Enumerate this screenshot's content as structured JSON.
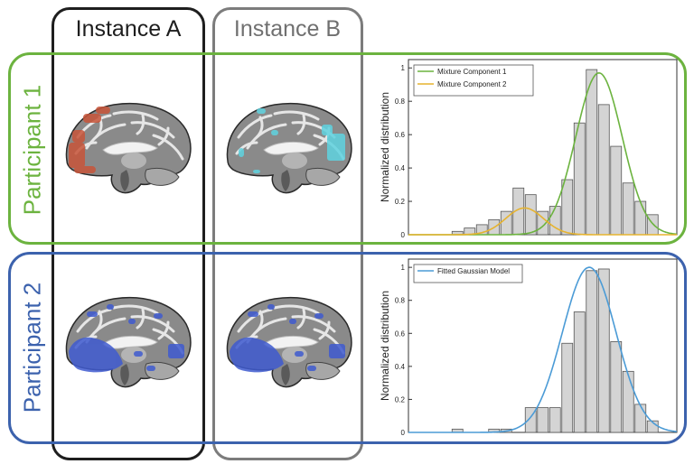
{
  "columns": {
    "a": {
      "title": "Instance A"
    },
    "b": {
      "title": "Instance B"
    }
  },
  "rows": {
    "p1": {
      "label": "Participant 1"
    },
    "p2": {
      "label": "Participant 2"
    }
  },
  "colors": {
    "green": "#6cb33f",
    "blue": "#3c62ad",
    "dark_frame": "#1e1e1e",
    "grey_frame": "#7c7c7c",
    "orange_overlay": "#c8553a",
    "cyan_overlay": "#5fd3e0",
    "blue_overlay": "#3f5bd0"
  },
  "brains": [
    {
      "participant": "Participant 1",
      "instance": "Instance A",
      "overlay": "orange_overlay"
    },
    {
      "participant": "Participant 1",
      "instance": "Instance B",
      "overlay": "cyan_overlay"
    },
    {
      "participant": "Participant 2",
      "instance": "Instance A",
      "overlay": "blue_overlay"
    },
    {
      "participant": "Participant 2",
      "instance": "Instance B",
      "overlay": "blue_overlay"
    }
  ],
  "chart_data": [
    {
      "type": "bar",
      "title": "",
      "xlabel": "",
      "ylabel": "Normalized distribution",
      "ylim": [
        0,
        1.05
      ],
      "yticks": [
        "0",
        "0.2",
        "0.4",
        "0.6",
        "0.8",
        "1"
      ],
      "bar_color": "#d4d4d4",
      "values": [
        0.02,
        0.04,
        0.06,
        0.09,
        0.14,
        0.28,
        0.24,
        0.14,
        0.17,
        0.33,
        0.67,
        0.99,
        0.78,
        0.53,
        0.31,
        0.2,
        0.12
      ],
      "series": [
        {
          "name": "Mixture Component 1",
          "color": "#6cb33f",
          "mu": 12.1,
          "sigma": 1.9,
          "peak": 0.97
        },
        {
          "name": "Mixture Component 2",
          "color": "#e6b32f",
          "mu": 6.0,
          "sigma": 1.55,
          "peak": 0.16
        }
      ],
      "legend": "top-left",
      "grid": false
    },
    {
      "type": "bar",
      "title": "",
      "xlabel": "",
      "ylabel": "Normalized distribution",
      "ylim": [
        0,
        1.05
      ],
      "yticks": [
        "0",
        "0.2",
        "0.4",
        "0.6",
        "0.8",
        "1"
      ],
      "bar_color": "#d4d4d4",
      "values": [
        0.02,
        0,
        0,
        0.02,
        0.02,
        0,
        0.15,
        0.15,
        0.15,
        0.54,
        0.73,
        0.98,
        0.99,
        0.55,
        0.37,
        0.17,
        0.07
      ],
      "series": [
        {
          "name": "Fitted Gaussian Model",
          "color": "#4b9bd6",
          "mu": 11.3,
          "sigma": 2.2,
          "peak": 1.0
        }
      ],
      "legend": "top-left",
      "grid": false
    }
  ]
}
